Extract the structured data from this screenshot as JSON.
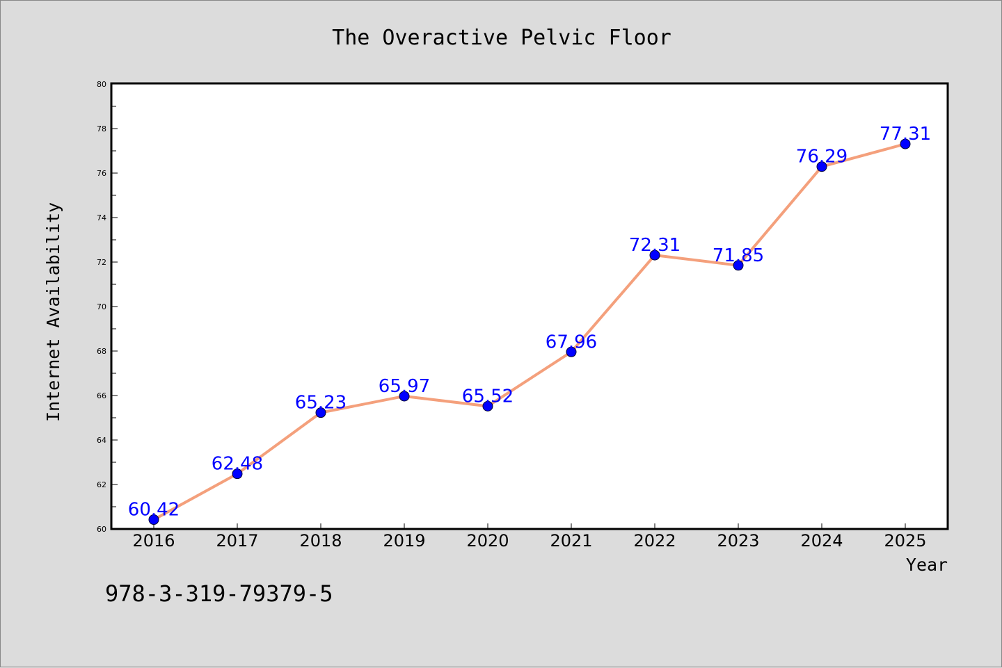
{
  "chart_data": {
    "type": "line",
    "title": "The Overactive Pelvic Floor",
    "xlabel": "Year",
    "ylabel": "Internet Availability",
    "categories": [
      "2016",
      "2017",
      "2018",
      "2019",
      "2020",
      "2021",
      "2022",
      "2023",
      "2024",
      "2025"
    ],
    "values": [
      60.42,
      62.48,
      65.23,
      65.97,
      65.52,
      67.96,
      72.31,
      71.85,
      76.29,
      77.31
    ],
    "data_labels": [
      "60.42",
      "62.48",
      "65.23",
      "65.97",
      "65.52",
      "67.96",
      "72.31",
      "71.85",
      "76.29",
      "77.31"
    ],
    "ylim": [
      60,
      80
    ],
    "yticks": [
      "60",
      "62",
      "64",
      "66",
      "68",
      "70",
      "72",
      "74",
      "76",
      "78",
      "80"
    ],
    "grid": false,
    "colors": {
      "line": "#f4a07c",
      "marker": "#0000ff",
      "label": "#0000ff",
      "background": "#dcdcdc",
      "plot_background": "#ffffff"
    }
  },
  "footnote": "978-3-319-79379-5"
}
